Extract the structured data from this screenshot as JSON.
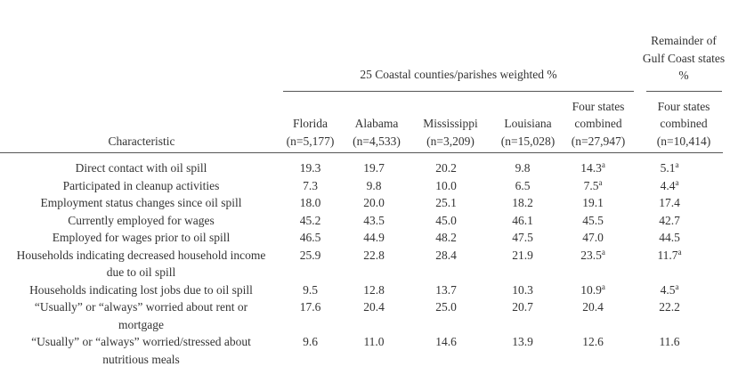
{
  "table": {
    "group_headers": {
      "coastal": "25 Coastal counties/parishes weighted %",
      "remainder": "Remainder of Gulf Coast states %"
    },
    "columns": [
      {
        "name": "Characteristic"
      },
      {
        "name": "Florida",
        "sample": "(n=5,177)"
      },
      {
        "name": "Alabama",
        "sample": "(n=4,533)"
      },
      {
        "name": "Mississippi",
        "sample": "(n=3,209)"
      },
      {
        "name": "Louisiana",
        "sample": "(n=15,028)"
      },
      {
        "name": "Four states combined",
        "sample": "(n=27,947)"
      },
      {
        "name": "Four states combined",
        "sample": "(n=10,414)"
      }
    ],
    "rows": [
      [
        "Direct contact with oil spill",
        {
          "value": "19.3"
        },
        {
          "value": "19.7"
        },
        {
          "value": "20.2"
        },
        {
          "value": "9.8"
        },
        {
          "value": "14.3",
          "note": "a"
        },
        {
          "value": "5.1",
          "note": "a"
        }
      ],
      [
        "Participated in cleanup activities",
        {
          "value": "7.3"
        },
        {
          "value": "9.8"
        },
        {
          "value": "10.0"
        },
        {
          "value": "6.5"
        },
        {
          "value": "7.5",
          "note": "a"
        },
        {
          "value": "4.4",
          "note": "a"
        }
      ],
      [
        "Employment status changes since oil spill",
        {
          "value": "18.0"
        },
        {
          "value": "20.0"
        },
        {
          "value": "25.1"
        },
        {
          "value": "18.2"
        },
        {
          "value": "19.1"
        },
        {
          "value": "17.4"
        }
      ],
      [
        "Currently employed for wages",
        {
          "value": "45.2"
        },
        {
          "value": "43.5"
        },
        {
          "value": "45.0"
        },
        {
          "value": "46.1"
        },
        {
          "value": "45.5"
        },
        {
          "value": "42.7"
        }
      ],
      [
        "Employed for wages prior to oil spill",
        {
          "value": "46.5"
        },
        {
          "value": "44.9"
        },
        {
          "value": "48.2"
        },
        {
          "value": "47.5"
        },
        {
          "value": "47.0"
        },
        {
          "value": "44.5"
        }
      ],
      [
        "Households indicating decreased household income due to oil spill",
        {
          "value": "25.9"
        },
        {
          "value": "22.8"
        },
        {
          "value": "28.4"
        },
        {
          "value": "21.9"
        },
        {
          "value": "23.5",
          "note": "a"
        },
        {
          "value": "11.7",
          "note": "a"
        }
      ],
      [
        "Households indicating lost jobs due to oil spill",
        {
          "value": "9.5"
        },
        {
          "value": "12.8"
        },
        {
          "value": "13.7"
        },
        {
          "value": "10.3"
        },
        {
          "value": "10.9",
          "note": "a"
        },
        {
          "value": "4.5",
          "note": "a"
        }
      ],
      [
        "“Usually” or “always” worried about rent or mortgage",
        {
          "value": "17.6"
        },
        {
          "value": "20.4"
        },
        {
          "value": "25.0"
        },
        {
          "value": "20.7"
        },
        {
          "value": "20.4"
        },
        {
          "value": "22.2"
        }
      ],
      [
        "“Usually” or “always” worried/stressed about nutritious meals",
        {
          "value": "9.6"
        },
        {
          "value": "11.0"
        },
        {
          "value": "14.6"
        },
        {
          "value": "13.9"
        },
        {
          "value": "12.6"
        },
        {
          "value": "11.6"
        }
      ]
    ]
  }
}
